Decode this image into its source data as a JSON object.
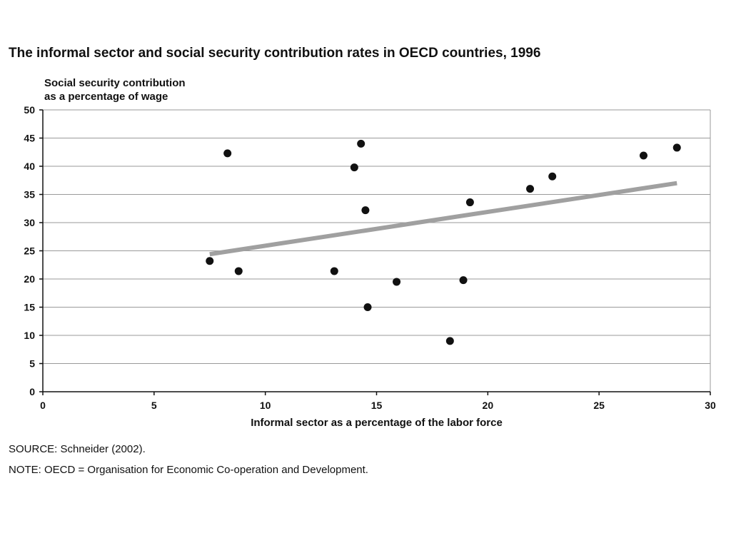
{
  "chart_data": {
    "type": "scatter",
    "title": "The informal sector and social security contribution rates in OECD countries, 1996",
    "ylabel_lines": [
      "Social security contribution",
      "as a percentage of wage"
    ],
    "xlabel": "Informal sector as a percentage of the labor force",
    "xlim": [
      0,
      30
    ],
    "ylim": [
      0,
      50
    ],
    "x_ticks": [
      0,
      5,
      10,
      15,
      20,
      25,
      30
    ],
    "y_ticks": [
      0,
      5,
      10,
      15,
      20,
      25,
      30,
      35,
      40,
      45,
      50
    ],
    "grid": "horizontal",
    "points": [
      {
        "x": 7.5,
        "y": 23.2
      },
      {
        "x": 8.3,
        "y": 42.3
      },
      {
        "x": 8.8,
        "y": 21.4
      },
      {
        "x": 13.1,
        "y": 21.4
      },
      {
        "x": 14.0,
        "y": 39.8
      },
      {
        "x": 14.3,
        "y": 44.0
      },
      {
        "x": 14.5,
        "y": 32.2
      },
      {
        "x": 14.6,
        "y": 15.0
      },
      {
        "x": 15.9,
        "y": 19.5
      },
      {
        "x": 18.3,
        "y": 9.0
      },
      {
        "x": 18.9,
        "y": 19.8
      },
      {
        "x": 19.2,
        "y": 33.6
      },
      {
        "x": 21.9,
        "y": 36.0
      },
      {
        "x": 22.9,
        "y": 38.2
      },
      {
        "x": 27.0,
        "y": 41.9
      },
      {
        "x": 28.5,
        "y": 43.3
      }
    ],
    "trendline": {
      "x": [
        7.5,
        28.5
      ],
      "y": [
        24.4,
        37.0
      ],
      "color": "#a0a0a0"
    },
    "point_color": "#111111"
  },
  "source": "SOURCE: Schneider (2002).",
  "note": "NOTE: OECD = Organisation for Economic Co-operation and Development."
}
